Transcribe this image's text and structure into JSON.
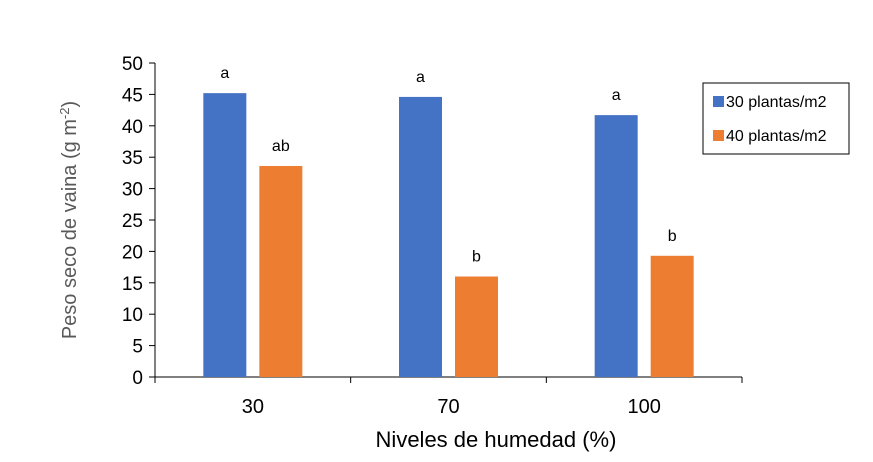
{
  "chart_data": {
    "type": "bar",
    "categories": [
      "30",
      "70",
      "100"
    ],
    "series": [
      {
        "name": "30 plantas/m2",
        "color": "#4472C4",
        "values": [
          45.2,
          44.6,
          41.7
        ],
        "labels": [
          "a",
          "a",
          "a"
        ]
      },
      {
        "name": "40 plantas/m2",
        "color": "#ED7D31",
        "values": [
          33.6,
          16.0,
          19.3
        ],
        "labels": [
          "ab",
          "b",
          "b"
        ]
      }
    ],
    "xlabel": "Niveles de humedad (%)",
    "ylabel": "Peso seco de vaina (g m",
    "ylabel_superscript": "-2",
    "ylabel_suffix": ")",
    "ylim": [
      0,
      50
    ],
    "yticks": [
      0,
      5,
      10,
      15,
      20,
      25,
      30,
      35,
      40,
      45,
      50
    ],
    "grid": false,
    "legend_position": "right"
  }
}
